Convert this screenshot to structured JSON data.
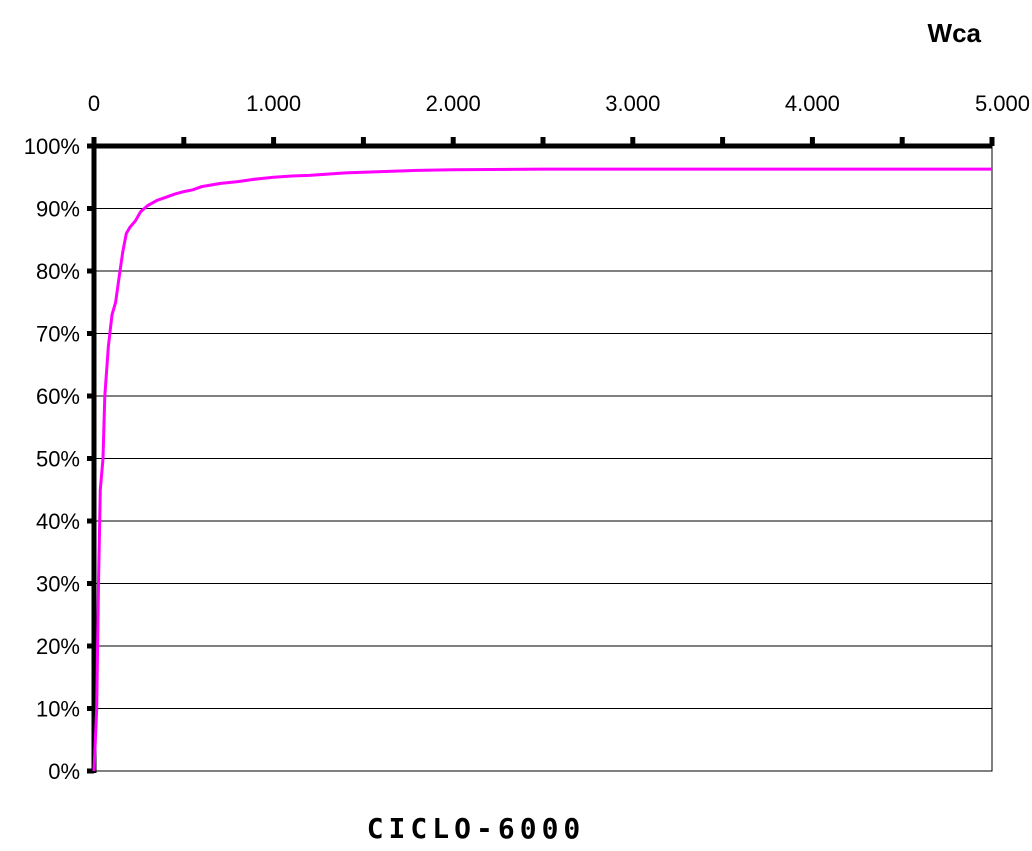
{
  "chart_data": {
    "type": "line",
    "title": "CICLO-6000",
    "xlabel": "Wca",
    "ylabel": "",
    "xlim": [
      0,
      5000
    ],
    "ylim": [
      0,
      100
    ],
    "x_ticks": [
      "0",
      "1.000",
      "2.000",
      "3.000",
      "4.000",
      "5.000"
    ],
    "x_tick_values": [
      0,
      1000,
      2000,
      3000,
      4000,
      5000
    ],
    "y_ticks": [
      "0%",
      "10%",
      "20%",
      "30%",
      "40%",
      "50%",
      "60%",
      "70%",
      "80%",
      "90%",
      "100%"
    ],
    "y_tick_values": [
      0,
      10,
      20,
      30,
      40,
      50,
      60,
      70,
      80,
      90,
      100
    ],
    "x_axis_position": "top",
    "grid": "horizontal",
    "series": [
      {
        "color": "#ff00ff",
        "x": [
          0,
          15,
          25,
          35,
          50,
          60,
          70,
          80,
          100,
          120,
          140,
          160,
          180,
          200,
          230,
          260,
          300,
          350,
          400,
          450,
          500,
          550,
          600,
          700,
          800,
          900,
          1000,
          1100,
          1200,
          1300,
          1400,
          1500,
          1600,
          1700,
          1800,
          2000,
          2500,
          3000,
          3500,
          4000,
          4500,
          5000
        ],
        "y": [
          0,
          10,
          30,
          45,
          50,
          60,
          64,
          68,
          73,
          75,
          79,
          83,
          86,
          87,
          88,
          89.5,
          90.5,
          91.3,
          91.8,
          92.3,
          92.7,
          93,
          93.5,
          94,
          94.3,
          94.7,
          95,
          95.2,
          95.3,
          95.5,
          95.7,
          95.8,
          95.9,
          96,
          96.1,
          96.2,
          96.3,
          96.3,
          96.3,
          96.3,
          96.3,
          96.3
        ]
      }
    ]
  }
}
